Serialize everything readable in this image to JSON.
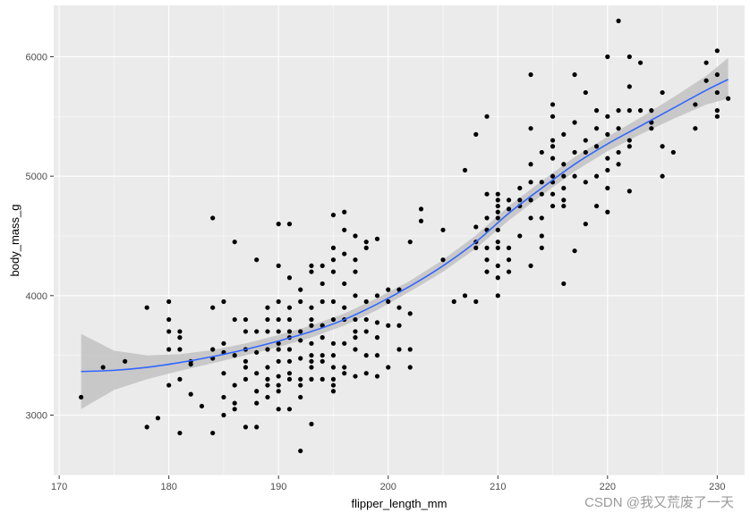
{
  "chart_data": {
    "type": "scatter",
    "title": "",
    "xlabel": "flipper_length_mm",
    "ylabel": "body_mass_g",
    "xlim": [
      169.5,
      232.5
    ],
    "ylim": [
      2495,
      6430
    ],
    "x_ticks": [
      170,
      180,
      190,
      200,
      210,
      220,
      230
    ],
    "x_tick_labels": [
      "170",
      "180",
      "190",
      "200",
      "210",
      "220",
      "230"
    ],
    "y_ticks": [
      3000,
      4000,
      5000,
      6000
    ],
    "y_tick_labels": [
      "3000",
      "4000",
      "5000",
      "6000"
    ],
    "grid": true,
    "legend": "none",
    "colors": {
      "panel_background": "#ebebeb",
      "grid_major": "#ffffff",
      "point": "#000000",
      "smooth_line": "#3366ff",
      "confidence_band": "#c2c2c2"
    },
    "series": [
      {
        "x": [
          172,
          174,
          176,
          178,
          178,
          179,
          180,
          180,
          180,
          180,
          180,
          181,
          181,
          181,
          181,
          181,
          182,
          182,
          182,
          183,
          184,
          184,
          184,
          184,
          184,
          185,
          185,
          185,
          185,
          185,
          185,
          186,
          186,
          186,
          186,
          186,
          186,
          187,
          187,
          187,
          187,
          187,
          187,
          187,
          188,
          188,
          188,
          188,
          188,
          188,
          188,
          189,
          189,
          189,
          189,
          189,
          189,
          189,
          189,
          190,
          190,
          190,
          190,
          190,
          190,
          190,
          190,
          190,
          190,
          190,
          190,
          191,
          191,
          191,
          191,
          191,
          191,
          191,
          191,
          191,
          191,
          191,
          192,
          192,
          192,
          192,
          192,
          192,
          192,
          192,
          192,
          193,
          193,
          193,
          193,
          193,
          193,
          193,
          193,
          193,
          193,
          193,
          194,
          194,
          194,
          194,
          194,
          194,
          194,
          194,
          195,
          195,
          195,
          195,
          195,
          195,
          195,
          195,
          195,
          195,
          195,
          195,
          196,
          196,
          196,
          196,
          196,
          196,
          196,
          196,
          196,
          197,
          197,
          197,
          197,
          197,
          197,
          197,
          197,
          197,
          198,
          198,
          198,
          198,
          198,
          198,
          198,
          199,
          199,
          199,
          199,
          199,
          199,
          200,
          200,
          200,
          200,
          201,
          201,
          201,
          201,
          202,
          202,
          202,
          202,
          203,
          203,
          205,
          205,
          206,
          207,
          207,
          208,
          208,
          208,
          208,
          208,
          209,
          209,
          209,
          209,
          209,
          209,
          209,
          210,
          210,
          210,
          210,
          210,
          210,
          210,
          210,
          210,
          210,
          210,
          211,
          211,
          211,
          211,
          211,
          212,
          212,
          212,
          212,
          213,
          213,
          213,
          213,
          213,
          213,
          213,
          214,
          214,
          214,
          214,
          214,
          214,
          215,
          215,
          215,
          215,
          215,
          215,
          215,
          215,
          215,
          216,
          216,
          216,
          216,
          216,
          216,
          216,
          217,
          217,
          217,
          217,
          217,
          218,
          218,
          218,
          218,
          218,
          219,
          219,
          219,
          219,
          219,
          220,
          220,
          220,
          220,
          220,
          220,
          220,
          221,
          221,
          221,
          221,
          221,
          222,
          222,
          222,
          222,
          222,
          222,
          223,
          223,
          224,
          224,
          224,
          225,
          225,
          225,
          226,
          228,
          228,
          229,
          229,
          230,
          230,
          230,
          230,
          230,
          231
        ],
        "y": [
          3150,
          3400,
          3450,
          2900,
          3900,
          2975,
          3550,
          3700,
          3800,
          3950,
          3250,
          2850,
          3550,
          3650,
          3700,
          3300,
          3175,
          3425,
          3450,
          3075,
          4650,
          3900,
          3550,
          3475,
          2850,
          3950,
          3600,
          3525,
          3350,
          3150,
          3000,
          3800,
          4450,
          3500,
          3250,
          3050,
          3100,
          3800,
          3700,
          3550,
          3450,
          3400,
          3300,
          2900,
          4300,
          3700,
          3525,
          3350,
          3200,
          3100,
          2900,
          3900,
          3800,
          3700,
          3550,
          3400,
          3300,
          3250,
          3150,
          4600,
          4250,
          3950,
          3800,
          3700,
          3600,
          3550,
          3450,
          3325,
          3250,
          3200,
          3050,
          4600,
          4150,
          3900,
          3800,
          3700,
          3650,
          3550,
          3450,
          3350,
          3300,
          3050,
          4050,
          3950,
          3700,
          3625,
          3475,
          3300,
          3250,
          3150,
          2700,
          4250,
          4200,
          3900,
          3800,
          3750,
          3600,
          3500,
          3450,
          3400,
          3300,
          2925,
          4250,
          4100,
          3950,
          3750,
          3650,
          3500,
          3450,
          3300,
          4675,
          4400,
          4300,
          4200,
          3950,
          3800,
          3600,
          3500,
          3400,
          3300,
          3250,
          3200,
          4700,
          4550,
          4350,
          4100,
          3900,
          3800,
          3600,
          3400,
          3350,
          4500,
          4300,
          4200,
          4000,
          3800,
          3700,
          3650,
          3550,
          3325,
          4450,
          4400,
          3950,
          3800,
          3700,
          3500,
          3350,
          4475,
          4000,
          3775,
          3650,
          3500,
          3325,
          4050,
          3950,
          3750,
          3400,
          4050,
          3900,
          3750,
          3550,
          4450,
          3850,
          3550,
          3400,
          4725,
          4625,
          4550,
          4300,
          3950,
          5050,
          4000,
          5350,
          4575,
          4450,
          4400,
          3950,
          5500,
          4850,
          4650,
          4550,
          4400,
          4300,
          4200,
          4850,
          4800,
          4750,
          4700,
          4650,
          4550,
          4450,
          4400,
          4250,
          4150,
          4000,
          4800,
          4725,
          4400,
          4300,
          4200,
          4900,
          4800,
          4750,
          4500,
          5850,
          5400,
          5100,
          4950,
          4800,
          4650,
          4250,
          5200,
          4950,
          4850,
          4650,
          4500,
          4400,
          5600,
          5500,
          5300,
          5250,
          5150,
          5000,
          4950,
          4850,
          4750,
          5350,
          5100,
          5000,
          4900,
          4800,
          4750,
          4100,
          5850,
          5450,
          5200,
          5000,
          4375,
          5700,
          5300,
          5200,
          4950,
          4600,
          5550,
          5400,
          5250,
          5000,
          4750,
          6000,
          5500,
          5350,
          5150,
          5050,
          4900,
          4700,
          6300,
          5550,
          5400,
          5200,
          5100,
          6000,
          5750,
          5550,
          5300,
          5250,
          4875,
          5950,
          5550,
          5550,
          5450,
          5400,
          5700,
          5250,
          5000,
          5200,
          5600,
          5400,
          5950,
          5800,
          6050,
          5850,
          5700,
          5550,
          5500,
          5650
        ]
      }
    ],
    "smooth": {
      "method": "loess",
      "x": [
        172,
        175,
        178,
        181,
        184,
        187,
        190,
        193,
        196,
        199,
        202,
        205,
        208,
        211,
        214,
        217,
        220,
        223,
        226,
        229,
        231
      ],
      "y": [
        3365,
        3375,
        3400,
        3440,
        3490,
        3550,
        3620,
        3700,
        3800,
        3930,
        4080,
        4250,
        4450,
        4690,
        4900,
        5100,
        5270,
        5420,
        5570,
        5720,
        5810
      ],
      "lower": [
        3050,
        3210,
        3300,
        3370,
        3435,
        3500,
        3570,
        3650,
        3750,
        3880,
        4035,
        4200,
        4395,
        4630,
        4840,
        5040,
        5210,
        5350,
        5480,
        5600,
        5650
      ],
      "upper": [
        3680,
        3540,
        3500,
        3510,
        3545,
        3600,
        3670,
        3750,
        3850,
        3980,
        4125,
        4300,
        4505,
        4750,
        4960,
        5160,
        5330,
        5490,
        5660,
        5840,
        5990
      ]
    },
    "watermark": "CSDN @我又荒废了一天"
  }
}
